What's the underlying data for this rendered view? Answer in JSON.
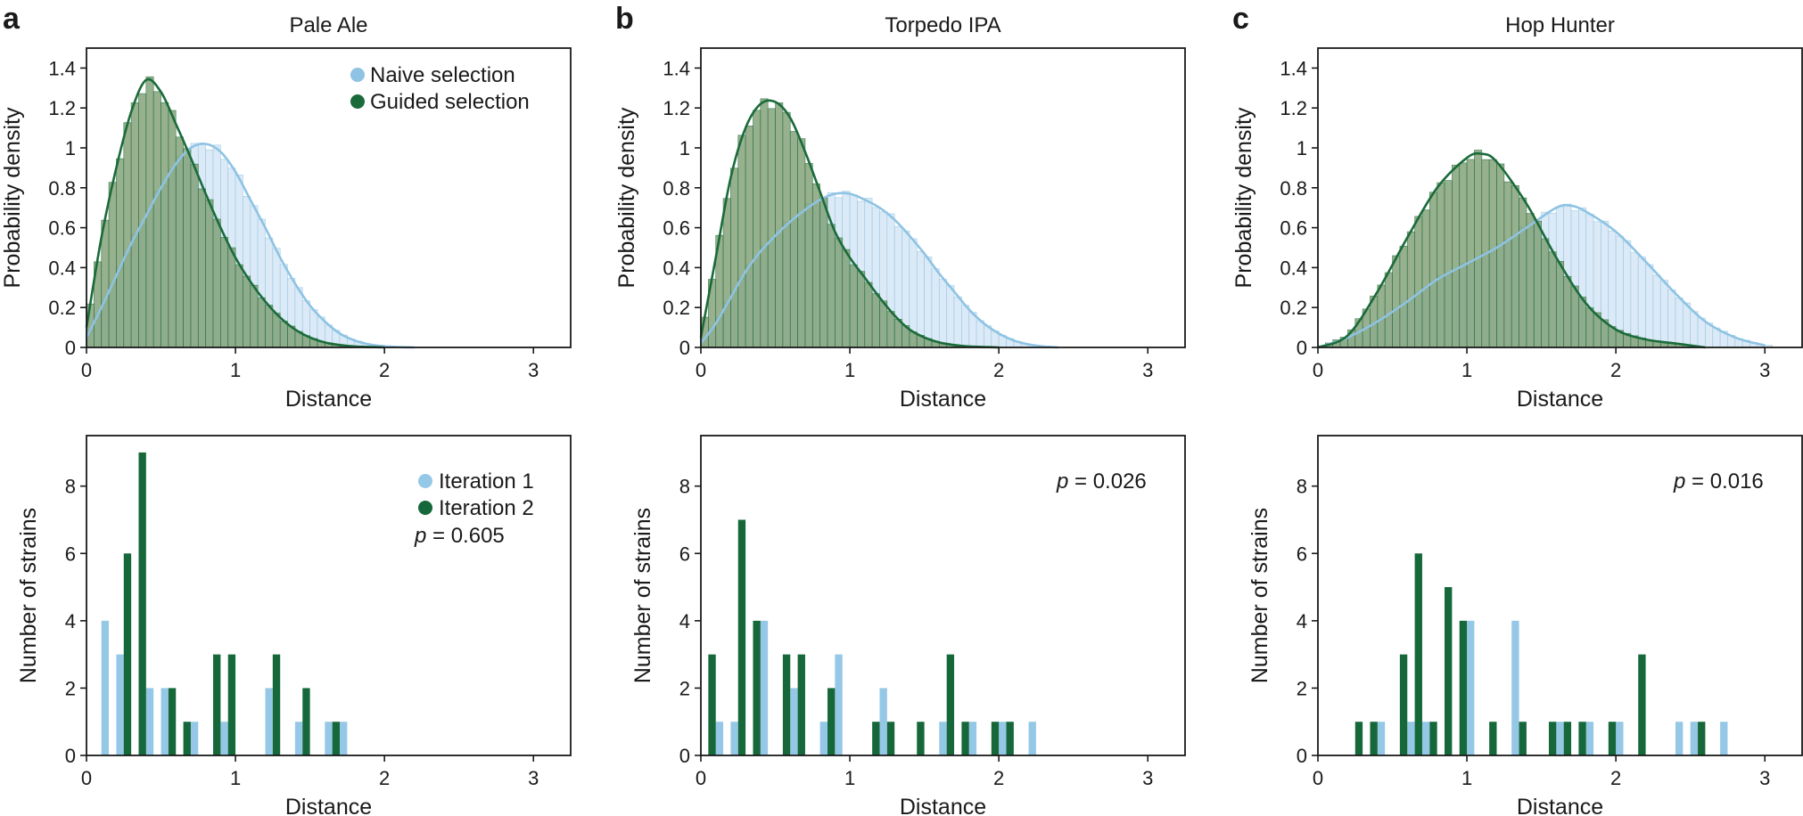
{
  "colors": {
    "naive_line": "#8ec3e3",
    "naive_fill": "#d9e9f5",
    "guided_line": "#1b6b3a",
    "guided_fill": "#7a9a6e",
    "iter1": "#95c8e6",
    "iter2": "#16683a",
    "axis": "#1a1a1a"
  },
  "panels": [
    {
      "letter": "a",
      "title": "Pale Ale",
      "legend_top": [
        "Naive selection",
        "Guided selection"
      ],
      "legend_bottom": [
        "Iteration 1",
        "Iteration 2"
      ],
      "p_value": "= 0.605"
    },
    {
      "letter": "b",
      "title": "Torpedo IPA",
      "legend_top": [],
      "legend_bottom": [],
      "p_value": "= 0.026"
    },
    {
      "letter": "c",
      "title": "Hop Hunter",
      "legend_top": [],
      "legend_bottom": [],
      "p_value": "= 0.016"
    }
  ],
  "p_symbol": "p",
  "chart_data": [
    {
      "type": "area",
      "panel": "a",
      "title": "Pale Ale",
      "xlabel": "Distance",
      "ylabel": "Probability density",
      "xlim": [
        0,
        3.25
      ],
      "ylim": [
        0,
        1.5
      ],
      "xticks": [
        "0",
        "1",
        "2",
        "3"
      ],
      "yticks": [
        "0",
        "0.2",
        "0.4",
        "0.6",
        "0.8",
        "1",
        "1.2",
        "1.4"
      ],
      "series": [
        {
          "name": "Naive selection",
          "x": [
            0,
            0.1,
            0.2,
            0.3,
            0.4,
            0.5,
            0.6,
            0.7,
            0.8,
            0.9,
            1.0,
            1.1,
            1.2,
            1.3,
            1.4,
            1.5,
            1.6,
            1.7,
            1.8,
            1.9,
            2.0,
            2.1,
            2.2
          ],
          "values": [
            0.05,
            0.2,
            0.36,
            0.52,
            0.66,
            0.8,
            0.92,
            1.0,
            1.02,
            0.98,
            0.88,
            0.74,
            0.6,
            0.45,
            0.32,
            0.21,
            0.13,
            0.07,
            0.035,
            0.015,
            0.006,
            0.002,
            0
          ]
        },
        {
          "name": "Guided selection",
          "x": [
            0,
            0.1,
            0.2,
            0.3,
            0.4,
            0.5,
            0.6,
            0.7,
            0.8,
            0.9,
            1.0,
            1.1,
            1.2,
            1.3,
            1.4,
            1.5,
            1.6,
            1.7,
            1.8,
            1.9,
            2.0
          ],
          "values": [
            0.1,
            0.55,
            0.9,
            1.18,
            1.34,
            1.28,
            1.12,
            0.95,
            0.77,
            0.6,
            0.45,
            0.33,
            0.23,
            0.15,
            0.09,
            0.05,
            0.025,
            0.012,
            0.005,
            0.002,
            0
          ]
        }
      ]
    },
    {
      "type": "area",
      "panel": "b",
      "title": "Torpedo IPA",
      "xlabel": "Distance",
      "ylabel": "Probability density",
      "xlim": [
        0,
        3.25
      ],
      "ylim": [
        0,
        1.5
      ],
      "xticks": [
        "0",
        "1",
        "2",
        "3"
      ],
      "yticks": [
        "0",
        "0.2",
        "0.4",
        "0.6",
        "0.8",
        "1",
        "1.2",
        "1.4"
      ],
      "series": [
        {
          "name": "Naive selection",
          "x": [
            0,
            0.1,
            0.2,
            0.3,
            0.4,
            0.5,
            0.6,
            0.7,
            0.8,
            0.9,
            1.0,
            1.1,
            1.2,
            1.3,
            1.4,
            1.5,
            1.6,
            1.7,
            1.8,
            1.9,
            2.0,
            2.1,
            2.2,
            2.3,
            2.4
          ],
          "values": [
            0.02,
            0.12,
            0.25,
            0.38,
            0.48,
            0.56,
            0.63,
            0.69,
            0.74,
            0.77,
            0.77,
            0.74,
            0.7,
            0.64,
            0.56,
            0.47,
            0.37,
            0.28,
            0.19,
            0.12,
            0.07,
            0.035,
            0.015,
            0.005,
            0
          ]
        },
        {
          "name": "Guided selection",
          "x": [
            0,
            0.1,
            0.2,
            0.3,
            0.4,
            0.5,
            0.6,
            0.7,
            0.8,
            0.9,
            1.0,
            1.1,
            1.2,
            1.3,
            1.4,
            1.5,
            1.6,
            1.7,
            1.8,
            1.9,
            2.0
          ],
          "values": [
            0.05,
            0.45,
            0.85,
            1.1,
            1.22,
            1.23,
            1.15,
            0.98,
            0.78,
            0.58,
            0.45,
            0.35,
            0.25,
            0.16,
            0.09,
            0.05,
            0.025,
            0.012,
            0.005,
            0.002,
            0
          ]
        }
      ]
    },
    {
      "type": "area",
      "panel": "c",
      "title": "Hop Hunter",
      "xlabel": "Distance",
      "ylabel": "Probability density",
      "xlim": [
        0,
        3.25
      ],
      "ylim": [
        0,
        1.5
      ],
      "xticks": [
        "0",
        "1",
        "2",
        "3"
      ],
      "yticks": [
        "0",
        "0.2",
        "0.4",
        "0.6",
        "0.8",
        "1",
        "1.2",
        "1.4"
      ],
      "series": [
        {
          "name": "Naive selection",
          "x": [
            0,
            0.2,
            0.4,
            0.6,
            0.8,
            1.0,
            1.2,
            1.4,
            1.6,
            1.7,
            1.8,
            2.0,
            2.2,
            2.4,
            2.6,
            2.8,
            3.0
          ],
          "values": [
            0,
            0.05,
            0.13,
            0.23,
            0.34,
            0.42,
            0.5,
            0.6,
            0.7,
            0.71,
            0.68,
            0.58,
            0.43,
            0.27,
            0.13,
            0.05,
            0.01
          ]
        },
        {
          "name": "Guided selection",
          "x": [
            0,
            0.2,
            0.4,
            0.6,
            0.8,
            1.0,
            1.1,
            1.2,
            1.4,
            1.6,
            1.8,
            2.0,
            2.2,
            2.4,
            2.6
          ],
          "values": [
            0,
            0.06,
            0.28,
            0.55,
            0.8,
            0.95,
            0.97,
            0.93,
            0.72,
            0.45,
            0.22,
            0.09,
            0.04,
            0.02,
            0
          ]
        }
      ]
    },
    {
      "type": "bar",
      "panel": "a",
      "xlabel": "Distance",
      "ylabel": "Number of strains",
      "xlim": [
        0,
        3.25
      ],
      "ylim": [
        0,
        9.5
      ],
      "xticks": [
        "0",
        "1",
        "2",
        "3"
      ],
      "yticks": [
        "0",
        "2",
        "4",
        "6",
        "8"
      ],
      "bin_width": 0.1,
      "series": [
        {
          "name": "Iteration 1",
          "x": [
            0.1,
            0.2,
            0.4,
            0.5,
            0.7,
            0.9,
            1.2,
            1.4,
            1.6,
            1.7
          ],
          "values": [
            4,
            3,
            2,
            2,
            1,
            1,
            2,
            1,
            1,
            1
          ]
        },
        {
          "name": "Iteration 2",
          "x": [
            0.2,
            0.3,
            0.5,
            0.6,
            0.8,
            0.9,
            1.2,
            1.4,
            1.6
          ],
          "values": [
            6,
            9,
            2,
            1,
            3,
            3,
            3,
            2,
            1
          ]
        }
      ]
    },
    {
      "type": "bar",
      "panel": "b",
      "xlabel": "Distance",
      "ylabel": "Number of strains",
      "xlim": [
        0,
        3.25
      ],
      "ylim": [
        0,
        9.5
      ],
      "xticks": [
        "0",
        "1",
        "2",
        "3"
      ],
      "yticks": [
        "0",
        "2",
        "4",
        "6",
        "8"
      ],
      "bin_width": 0.1,
      "series": [
        {
          "name": "Iteration 1",
          "x": [
            0.1,
            0.2,
            0.4,
            0.6,
            0.8,
            0.9,
            1.2,
            1.6,
            1.8,
            2.0,
            2.2
          ],
          "values": [
            1,
            1,
            4,
            2,
            1,
            3,
            2,
            1,
            1,
            1,
            1
          ]
        },
        {
          "name": "Iteration 2",
          "x": [
            0,
            0.2,
            0.3,
            0.5,
            0.6,
            0.8,
            1.1,
            1.2,
            1.4,
            1.6,
            1.7,
            1.9,
            2.0
          ],
          "values": [
            3,
            7,
            4,
            3,
            3,
            2,
            1,
            1,
            1,
            3,
            1,
            1,
            1
          ]
        }
      ]
    },
    {
      "type": "bar",
      "panel": "c",
      "xlabel": "Distance",
      "ylabel": "Number of strains",
      "xlim": [
        0,
        3.25
      ],
      "ylim": [
        0,
        9.5
      ],
      "xticks": [
        "0",
        "1",
        "2",
        "3"
      ],
      "yticks": [
        "0",
        "2",
        "4",
        "6",
        "8"
      ],
      "bin_width": 0.1,
      "series": [
        {
          "name": "Iteration 1",
          "x": [
            0.4,
            0.6,
            0.7,
            1.0,
            1.3,
            1.6,
            1.8,
            2.0,
            2.4,
            2.5,
            2.7
          ],
          "values": [
            1,
            1,
            1,
            4,
            4,
            1,
            1,
            1,
            1,
            1,
            1
          ]
        },
        {
          "name": "Iteration 2",
          "x": [
            0.2,
            0.3,
            0.5,
            0.6,
            0.7,
            0.8,
            0.9,
            1.1,
            1.3,
            1.5,
            1.6,
            1.7,
            1.9,
            2.1,
            2.5
          ],
          "values": [
            1,
            1,
            3,
            6,
            1,
            5,
            4,
            1,
            1,
            1,
            1,
            1,
            1,
            3,
            1
          ]
        }
      ]
    }
  ]
}
